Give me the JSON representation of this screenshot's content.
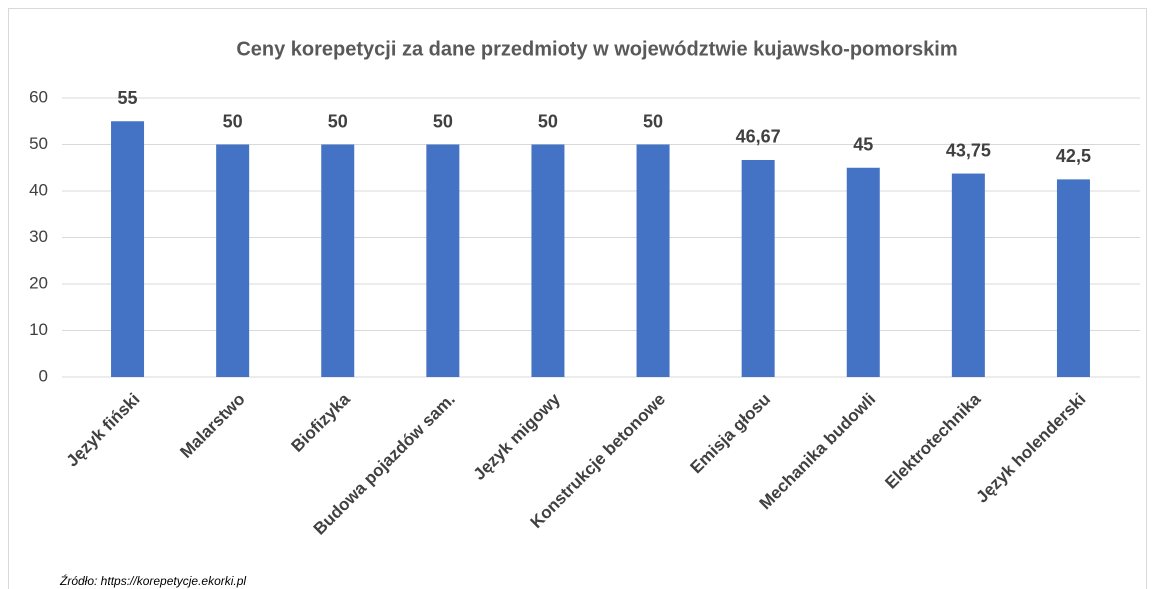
{
  "chart_data": {
    "type": "bar",
    "title": "Ceny korepetycji za dane przedmioty w województwie kujawsko-pomorskim",
    "categories": [
      "Język fiński",
      "Malarstwo",
      "Biofizyka",
      "Budowa pojazdów sam.",
      "Język migowy",
      "Konstrukcje betonowe",
      "Emisja głosu",
      "Mechanika budowli",
      "Elektrotechnika",
      "Język holenderski"
    ],
    "values": [
      55,
      50,
      50,
      50,
      50,
      50,
      46.67,
      45,
      43.75,
      42.5
    ],
    "value_labels": [
      "55",
      "50",
      "50",
      "50",
      "50",
      "50",
      "46,67",
      "45",
      "43,75",
      "42,5"
    ],
    "color": "#4472c4",
    "ylim": [
      0,
      60
    ],
    "yticks": [
      0,
      10,
      20,
      30,
      40,
      50,
      60
    ],
    "grid": true,
    "source": "Źródło: https://korepetycje.ekorki.pl"
  }
}
